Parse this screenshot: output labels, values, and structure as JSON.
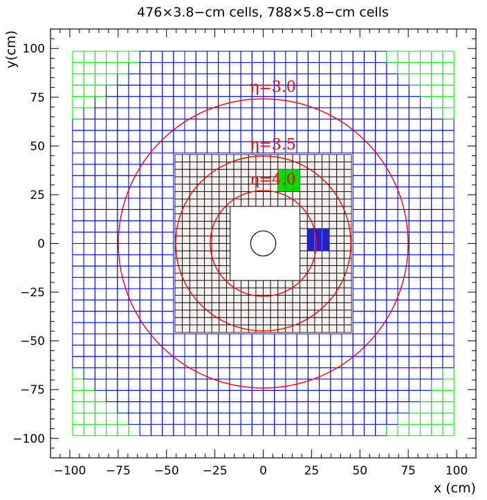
{
  "chart_data": {
    "type": "scatter",
    "title": "476×3.8−cm cells, 788×5.8−cm cells",
    "xlabel": "x (cm)",
    "ylabel": "y(cm)",
    "xlim": [
      -110,
      110
    ],
    "ylim": [
      -110,
      110
    ],
    "xticks": [
      -100,
      -75,
      -50,
      -25,
      0,
      25,
      50,
      75,
      100
    ],
    "yticks": [
      -100,
      -75,
      -50,
      -25,
      0,
      25,
      50,
      75,
      100
    ],
    "grid": false,
    "outer_detector": {
      "cell_size_cm": 5.8,
      "half_extent_cm": 98.6,
      "color": "#0000ff",
      "corner_color": "#00ee00",
      "inner_cutout_half_cm": 46.4
    },
    "inner_detector": {
      "cell_size_cm": 3.8,
      "half_extent_cm": 45.6,
      "color": "#000000",
      "fill": "#f4f2ee",
      "beam_hole": {
        "x_min": -17.1,
        "x_max": 19.0,
        "y_min": -19.0,
        "y_max": 19.0
      },
      "beam_pipe_radius_cm": 6.5
    },
    "highlighted_cells": [
      {
        "color": "#00dd00",
        "x_min": 7.6,
        "x_max": 19.0,
        "y_min": 26.6,
        "y_max": 38.0
      },
      {
        "color": "#2222cc",
        "x_min": 22.8,
        "x_max": 34.2,
        "y_min": -3.8,
        "y_max": 7.6
      }
    ],
    "eta_circles": [
      {
        "label": "η=3.0",
        "radius_cm": 74.9,
        "color": "#ff0000"
      },
      {
        "label": "η=3.5",
        "radius_cm": 45.3,
        "color": "#ff0000"
      },
      {
        "label": "η=4.0",
        "radius_cm": 27.4,
        "color": "#ff0000"
      }
    ]
  }
}
